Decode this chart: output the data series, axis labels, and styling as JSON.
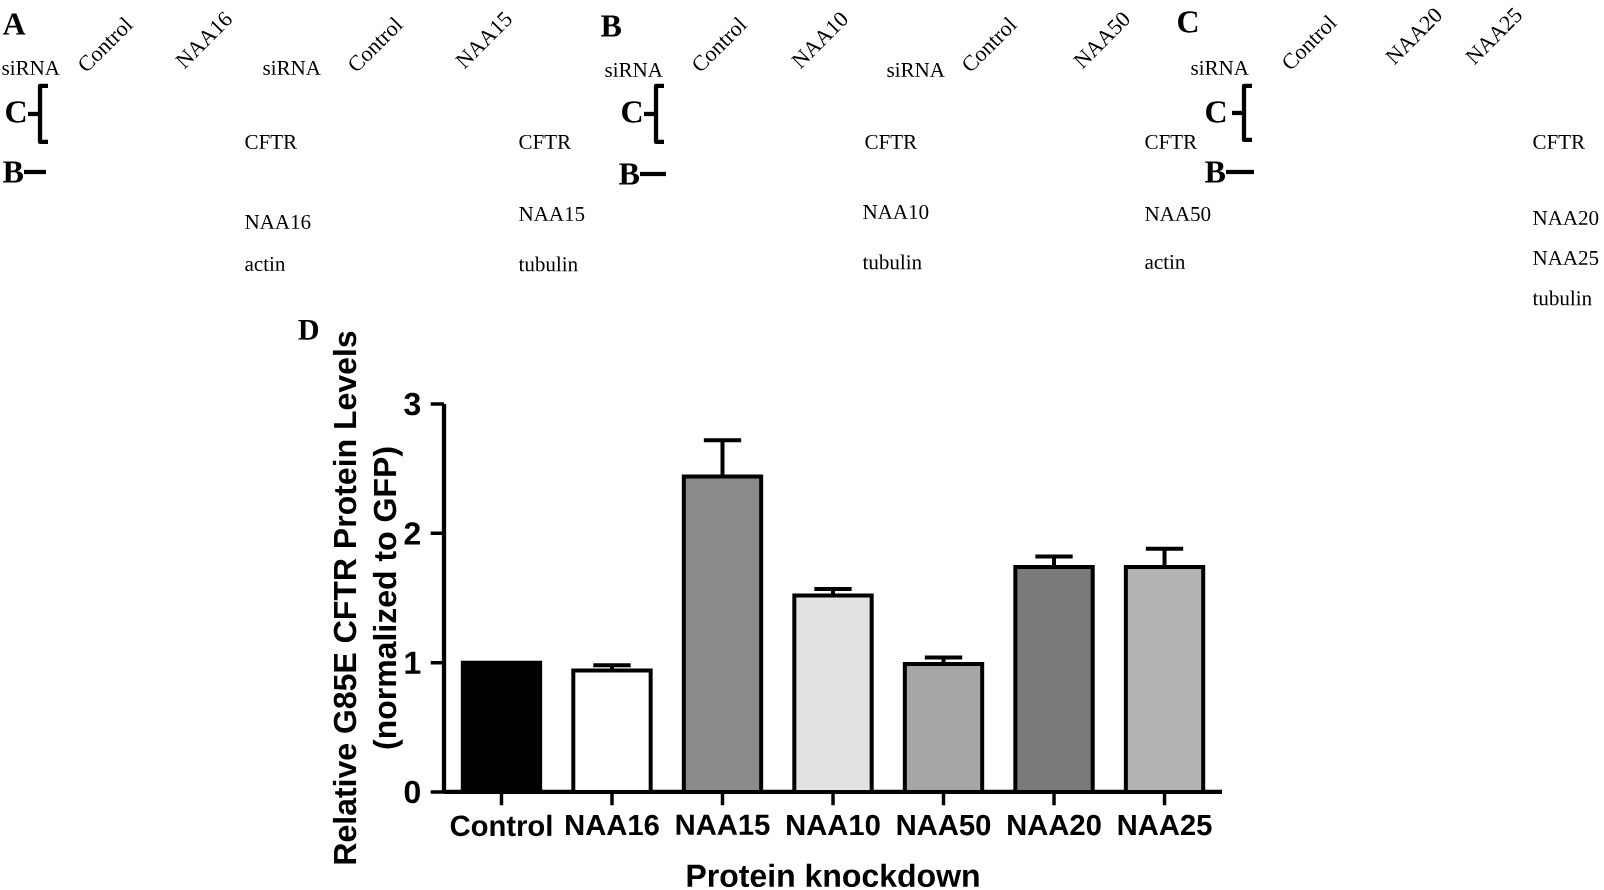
{
  "chart_data": [
    {
      "type": "other",
      "title": "A",
      "annotations": [
        "siRNA",
        "Control",
        "NAA16",
        "C",
        "B",
        "CFTR",
        "NAA16",
        "actin",
        "siRNA",
        "Control",
        "NAA15",
        "CFTR",
        "NAA15",
        "tubulin"
      ]
    },
    {
      "type": "other",
      "title": "B",
      "annotations": [
        "siRNA",
        "Control",
        "NAA10",
        "C",
        "B",
        "CFTR",
        "NAA10",
        "tubulin",
        "siRNA",
        "Control",
        "NAA50",
        "CFTR",
        "NAA50",
        "actin"
      ]
    },
    {
      "type": "other",
      "title": "C",
      "annotations": [
        "siRNA",
        "Control",
        "NAA20",
        "NAA25",
        "C",
        "B",
        "CFTR",
        "NAA20",
        "NAA25",
        "tubulin"
      ]
    },
    {
      "type": "bar",
      "title": "D",
      "xlabel": "Protein knockdown",
      "ylabel": "Relative G85E CFTR Protein Levels (normalized to GFP)",
      "categories": [
        "Control",
        "NAA16",
        "NAA15",
        "NAA10",
        "NAA50",
        "NAA20",
        "NAA25"
      ],
      "values": [
        1.0,
        0.94,
        2.44,
        1.52,
        0.99,
        1.74,
        1.74
      ],
      "colors": [
        "#000000",
        "#ffffff",
        "#8a8a8a",
        "#e2e2e2",
        "#a6a6a6",
        "#7a7a7a",
        "#b4b4b4"
      ],
      "errors": [
        null,
        [
          0.94,
          0.98
        ],
        [
          2.44,
          2.72
        ],
        [
          1.52,
          1.57
        ],
        [
          0.99,
          1.04
        ],
        [
          1.74,
          1.82
        ],
        [
          1.74,
          1.88
        ]
      ],
      "ylim": [
        0,
        3
      ],
      "yticks": [
        0,
        1,
        2,
        3
      ]
    }
  ]
}
